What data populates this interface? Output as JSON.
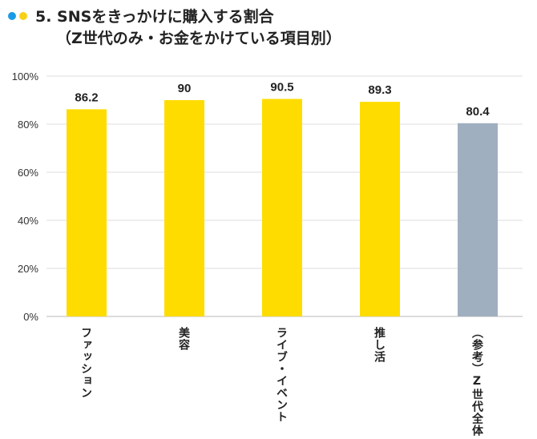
{
  "title": {
    "line1": "5. SNSをきっかけに購入する割合",
    "line2": "（Z世代のみ・お金をかけている項目別）"
  },
  "colors": {
    "dot1": "#1a9be6",
    "dot2": "#f7d117",
    "bar": "#ffdc00",
    "reference_bar": "#a0afc0",
    "grid": "#dcdcdc"
  },
  "chart_data": {
    "type": "bar",
    "title": "5. SNSをきっかけに購入する割合（Z世代のみ・お金をかけている項目別）",
    "categories": [
      "ファッション",
      "美容",
      "ライブ・イベント",
      "推し活",
      "（参考）Z世代全体"
    ],
    "values": [
      86.2,
      90,
      90.5,
      89.3,
      80.4
    ],
    "value_labels": [
      "86.2",
      "90",
      "90.5",
      "89.3",
      "80.4"
    ],
    "ylim": [
      0,
      100
    ],
    "yticks": [
      0,
      20,
      40,
      60,
      80,
      100
    ],
    "ytick_labels": [
      "0%",
      "20%",
      "40%",
      "60%",
      "80%",
      "100%"
    ],
    "grid": true,
    "xlabel": "",
    "ylabel": ""
  }
}
